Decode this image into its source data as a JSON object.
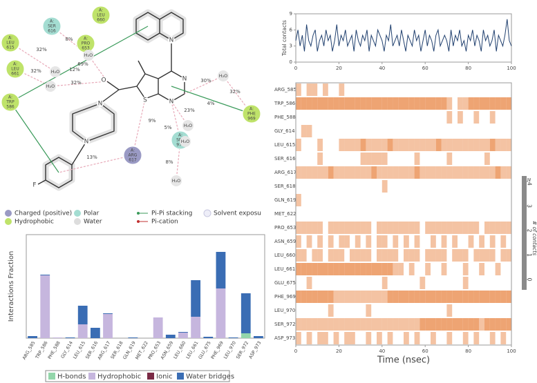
{
  "diagram": {
    "residues": [
      {
        "lines": [
          "A:",
          "SER",
          "616"
        ],
        "kind": "polar"
      },
      {
        "lines": [
          "A:",
          "LEU",
          "660"
        ],
        "kind": "hydrophobic"
      },
      {
        "lines": [
          "A:",
          "LEU",
          "615"
        ],
        "kind": "hydrophobic"
      },
      {
        "lines": [
          "A:",
          "PRO",
          "653"
        ],
        "kind": "hydrophobic"
      },
      {
        "lines": [
          "A:",
          "LEU",
          "661"
        ],
        "kind": "hydrophobic"
      },
      {
        "lines": [
          "A:",
          "TRP",
          "586"
        ],
        "kind": "hydrophobic"
      },
      {
        "lines": [
          "A:",
          "PHE",
          "969"
        ],
        "kind": "hydrophobic"
      },
      {
        "lines": [
          "A:",
          "ARG",
          "617"
        ],
        "kind": "charged"
      },
      {
        "lines": [
          "A:",
          "SER",
          "972"
        ],
        "kind": "polar"
      }
    ],
    "water": [
      "H₂O",
      "H₂O",
      "H₂O",
      "H₂O",
      "H₂O",
      "H₂O",
      "H₂O"
    ],
    "percentages": [
      "69%",
      "32%",
      "8%",
      "12%",
      "32%",
      "32%",
      "30%",
      "32%",
      "4%",
      "13%",
      "9%",
      "5%",
      "23%",
      "8%"
    ],
    "atoms": [
      "N",
      "N",
      "N",
      "O",
      "S",
      "N",
      "N",
      "F"
    ],
    "legend": [
      "Charged (positive)",
      "Hydrophobic",
      "Polar",
      "Water",
      "Pi-Pi stacking",
      "Pi-cation",
      "Solvent exposu"
    ]
  },
  "chart_data": [
    {
      "type": "bar",
      "stacked": true,
      "ylabel": "Interactions Fraction",
      "categories": [
        "ARG_585",
        "TRP_586",
        "PHE_588",
        "GLY_614",
        "LEU_615",
        "SER_616",
        "ARG_617",
        "SER_618",
        "GLN_619",
        "MET_622",
        "PRO_653",
        "ASN_659",
        "LEU_660",
        "LEU_661",
        "GLU_675",
        "PHE_969",
        "LEU_970",
        "SER_972",
        "ASP_973"
      ],
      "ylim": [
        0,
        1.5
      ],
      "series": [
        {
          "name": "H-bonds",
          "color": "#93d6aa",
          "values": [
            0,
            0,
            0,
            0,
            0,
            0,
            0,
            0,
            0,
            0,
            0,
            0,
            0,
            0,
            0,
            0,
            0,
            0.07,
            0
          ]
        },
        {
          "name": "Hydrophobic",
          "color": "#c6b6de",
          "values": [
            0,
            0.91,
            0.01,
            0,
            0.2,
            0,
            0.35,
            0,
            0,
            0,
            0.3,
            0,
            0.08,
            0.31,
            0,
            0.72,
            0,
            0,
            0
          ]
        },
        {
          "name": "Ionic",
          "color": "#7a2a45",
          "values": [
            0,
            0,
            0,
            0,
            0,
            0,
            0,
            0,
            0,
            0,
            0,
            0,
            0,
            0,
            0,
            0,
            0,
            0,
            0
          ]
        },
        {
          "name": "Water bridges",
          "color": "#3a6db4",
          "values": [
            0.03,
            0.01,
            0,
            0.01,
            0.27,
            0.15,
            0.01,
            0,
            0.01,
            0,
            0,
            0.05,
            0.01,
            0.53,
            0.02,
            0.53,
            0.01,
            0.58,
            0.03
          ]
        }
      ]
    },
    {
      "type": "line",
      "ylabel": "Total contacts",
      "color": "#1f3f6e",
      "x": [
        0,
        1,
        2,
        3,
        4,
        5,
        6,
        7,
        8,
        9,
        10,
        11,
        12,
        13,
        14,
        15,
        16,
        17,
        18,
        19,
        20,
        21,
        22,
        23,
        24,
        25,
        26,
        27,
        28,
        29,
        30,
        31,
        32,
        33,
        34,
        35,
        36,
        37,
        38,
        39,
        40,
        41,
        42,
        43,
        44,
        45,
        46,
        47,
        48,
        49,
        50,
        51,
        52,
        53,
        54,
        55,
        56,
        57,
        58,
        59,
        60,
        61,
        62,
        63,
        64,
        65,
        66,
        67,
        68,
        69,
        70,
        71,
        72,
        73,
        74,
        75,
        76,
        77,
        78,
        79,
        80,
        81,
        82,
        83,
        84,
        85,
        86,
        87,
        88,
        89,
        90,
        91,
        92,
        93,
        94,
        95,
        96,
        97,
        98,
        99,
        100
      ],
      "values": [
        4,
        6,
        3,
        5,
        2,
        7,
        4,
        3,
        5,
        6,
        2,
        4,
        5,
        3,
        6,
        4,
        5,
        2,
        4,
        7,
        3,
        5,
        4,
        6,
        3,
        4,
        5,
        2,
        6,
        4,
        3,
        5,
        4,
        6,
        2,
        5,
        4,
        3,
        6,
        5,
        4,
        2,
        5,
        4,
        7,
        3,
        4,
        5,
        3,
        6,
        4,
        2,
        5,
        4,
        3,
        6,
        4,
        5,
        2,
        4,
        6,
        3,
        5,
        4,
        2,
        5,
        6,
        3,
        4,
        5,
        4,
        2,
        6,
        3,
        5,
        4,
        6,
        3,
        4,
        2,
        5,
        4,
        6,
        3,
        5,
        4,
        2,
        6,
        4,
        5,
        3,
        4,
        6,
        2,
        5,
        4,
        3,
        5,
        8,
        4,
        3
      ],
      "xlim": [
        0,
        100
      ],
      "xticks": [
        0,
        20,
        40,
        60,
        80,
        100
      ],
      "ylim": [
        0,
        9
      ],
      "yticks": [
        0,
        3,
        6,
        9
      ]
    },
    {
      "type": "heatmap",
      "xlabel": "Time (nsec)",
      "color": "#e98a4b",
      "categories": [
        "ARG_585",
        "TRP_586",
        "PHE_588",
        "GLY_614",
        "LEU_615",
        "SER_616",
        "ARG_617",
        "SER_618",
        "GLN_619",
        "MET_622",
        "PRO_653",
        "ASN_659",
        "LEU_660",
        "LEU_661",
        "GLU_675",
        "PHE_969",
        "LEU_970",
        "SER_972",
        "ASP_973"
      ],
      "x": [
        0,
        2.5,
        5,
        7.5,
        10,
        12.5,
        15,
        17.5,
        20,
        22.5,
        25,
        27.5,
        30,
        32.5,
        35,
        37.5,
        40,
        42.5,
        45,
        47.5,
        50,
        52.5,
        55,
        57.5,
        60,
        62.5,
        65,
        67.5,
        70,
        72.5,
        75,
        77.5,
        80,
        82.5,
        85,
        87.5,
        90,
        92.5,
        95,
        97.5
      ],
      "bin_width": 2.5,
      "xlim": [
        0,
        100
      ],
      "xticks": [
        0,
        20,
        40,
        60,
        80,
        100
      ],
      "values": [
        [
          1,
          0,
          1,
          1,
          0,
          1,
          0,
          0,
          1,
          0,
          0,
          0,
          0,
          0,
          0,
          0,
          0,
          0,
          0,
          0,
          0,
          0,
          0,
          0,
          0,
          0,
          0,
          0,
          0,
          0,
          0,
          0,
          0,
          0,
          0,
          0,
          0,
          0,
          0,
          0
        ],
        [
          2,
          2,
          2,
          2,
          2,
          2,
          2,
          2,
          2,
          2,
          2,
          2,
          2,
          2,
          2,
          2,
          2,
          2,
          2,
          2,
          2,
          2,
          2,
          2,
          2,
          2,
          2,
          2,
          1,
          0,
          1,
          1,
          2,
          2,
          2,
          2,
          2,
          2,
          2,
          2
        ],
        [
          0,
          0,
          0,
          0,
          0,
          0,
          0,
          0,
          0,
          0,
          0,
          0,
          0,
          0,
          0,
          0,
          0,
          0,
          0,
          0,
          0,
          0,
          0,
          0,
          0,
          0,
          0,
          0,
          1,
          0,
          1,
          0,
          0,
          1,
          0,
          0,
          1,
          0,
          0,
          0
        ],
        [
          0,
          1,
          1,
          0,
          0,
          0,
          0,
          0,
          0,
          0,
          0,
          0,
          0,
          0,
          0,
          0,
          0,
          0,
          0,
          0,
          0,
          0,
          0,
          0,
          0,
          0,
          0,
          0,
          0,
          0,
          0,
          0,
          0,
          0,
          0,
          0,
          0,
          0,
          0,
          0
        ],
        [
          1,
          0,
          0,
          0,
          1,
          0,
          0,
          0,
          1,
          1,
          1,
          1,
          2,
          1,
          1,
          1,
          1,
          2,
          1,
          1,
          1,
          1,
          1,
          1,
          1,
          1,
          2,
          1,
          1,
          1,
          1,
          1,
          1,
          1,
          1,
          1,
          2,
          1,
          1,
          1
        ],
        [
          0,
          0,
          0,
          0,
          1,
          0,
          0,
          0,
          0,
          0,
          0,
          0,
          1,
          1,
          1,
          1,
          1,
          0,
          0,
          0,
          0,
          0,
          1,
          0,
          0,
          0,
          0,
          0,
          1,
          0,
          0,
          0,
          0,
          0,
          0,
          1,
          0,
          0,
          0,
          0
        ],
        [
          1,
          1,
          1,
          1,
          1,
          1,
          2,
          1,
          1,
          1,
          1,
          1,
          1,
          1,
          2,
          1,
          1,
          1,
          1,
          1,
          1,
          1,
          2,
          1,
          1,
          1,
          1,
          1,
          1,
          1,
          1,
          1,
          1,
          1,
          1,
          1,
          1,
          2,
          1,
          1
        ],
        [
          0,
          0,
          0,
          0,
          0,
          0,
          0,
          0,
          0,
          0,
          0,
          0,
          0,
          0,
          0,
          0,
          1,
          0,
          0,
          0,
          0,
          0,
          0,
          0,
          0,
          0,
          0,
          0,
          0,
          0,
          0,
          0,
          0,
          0,
          0,
          0,
          0,
          0,
          0,
          0
        ],
        [
          1,
          0,
          0,
          0,
          0,
          0,
          0,
          0,
          0,
          0,
          0,
          0,
          0,
          0,
          0,
          0,
          0,
          0,
          0,
          0,
          0,
          0,
          0,
          0,
          0,
          0,
          0,
          0,
          0,
          0,
          0,
          0,
          0,
          0,
          0,
          0,
          0,
          0,
          0,
          0
        ],
        [
          0,
          0,
          0,
          0,
          0,
          0,
          0,
          0,
          0,
          0,
          0,
          0,
          0,
          0,
          0,
          0,
          0,
          0,
          0,
          0,
          0,
          0,
          0,
          0,
          0,
          0,
          0,
          0,
          0,
          0,
          0,
          0,
          0,
          0,
          0,
          0,
          0,
          0,
          0,
          0
        ],
        [
          1,
          1,
          1,
          1,
          1,
          0,
          1,
          1,
          1,
          1,
          1,
          1,
          1,
          1,
          0,
          1,
          1,
          1,
          1,
          1,
          1,
          1,
          1,
          0,
          1,
          1,
          1,
          1,
          1,
          1,
          1,
          1,
          1,
          1,
          0,
          1,
          1,
          1,
          1,
          1
        ],
        [
          1,
          0,
          1,
          0,
          1,
          0,
          1,
          0,
          1,
          1,
          0,
          1,
          0,
          1,
          0,
          1,
          1,
          0,
          1,
          0,
          1,
          0,
          1,
          0,
          0,
          1,
          0,
          1,
          0,
          1,
          0,
          0,
          1,
          0,
          1,
          0,
          1,
          0,
          1,
          0
        ],
        [
          1,
          1,
          0,
          1,
          1,
          0,
          1,
          1,
          1,
          0,
          1,
          1,
          1,
          1,
          0,
          1,
          1,
          1,
          1,
          0,
          1,
          1,
          1,
          0,
          1,
          1,
          1,
          1,
          0,
          1,
          1,
          1,
          0,
          1,
          1,
          1,
          1,
          0,
          1,
          1
        ],
        [
          2,
          2,
          2,
          2,
          2,
          2,
          2,
          2,
          2,
          2,
          2,
          2,
          2,
          2,
          2,
          2,
          2,
          2,
          1,
          1,
          0,
          1,
          0,
          0,
          1,
          0,
          0,
          1,
          0,
          0,
          0,
          1,
          0,
          0,
          1,
          0,
          0,
          1,
          0,
          0
        ],
        [
          0,
          0,
          1,
          0,
          0,
          0,
          0,
          0,
          0,
          0,
          0,
          0,
          0,
          0,
          0,
          0,
          1,
          0,
          0,
          0,
          0,
          0,
          0,
          1,
          0,
          0,
          0,
          0,
          0,
          0,
          0,
          1,
          0,
          0,
          0,
          0,
          0,
          0,
          0,
          0
        ],
        [
          2,
          2,
          2,
          2,
          2,
          2,
          2,
          1,
          1,
          1,
          1,
          1,
          1,
          1,
          1,
          1,
          1,
          2,
          2,
          2,
          2,
          2,
          2,
          2,
          2,
          2,
          2,
          2,
          2,
          2,
          2,
          2,
          2,
          2,
          2,
          2,
          2,
          2,
          2,
          2
        ],
        [
          0,
          0,
          0,
          0,
          0,
          0,
          1,
          0,
          0,
          0,
          0,
          0,
          0,
          1,
          0,
          0,
          0,
          0,
          0,
          0,
          0,
          0,
          0,
          0,
          0,
          0,
          0,
          0,
          1,
          0,
          0,
          0,
          0,
          0,
          0,
          0,
          0,
          0,
          0,
          0
        ],
        [
          1,
          1,
          1,
          1,
          1,
          1,
          1,
          1,
          1,
          1,
          1,
          1,
          1,
          1,
          1,
          1,
          1,
          1,
          1,
          1,
          1,
          1,
          1,
          2,
          2,
          2,
          2,
          2,
          2,
          2,
          2,
          2,
          2,
          2,
          1,
          2,
          2,
          2,
          2,
          2
        ],
        [
          1,
          0,
          1,
          0,
          1,
          1,
          0,
          1,
          0,
          1,
          1,
          0,
          0,
          1,
          0,
          1,
          0,
          1,
          0,
          0,
          1,
          0,
          1,
          0,
          0,
          1,
          0,
          0,
          1,
          0,
          0,
          1,
          0,
          1,
          0,
          0,
          1,
          0,
          1,
          0
        ]
      ],
      "colorbar": {
        "label": "# of contacts",
        "ticks": [
          0,
          1,
          2,
          3,
          {
            "value": 4,
            "label": "≥4"
          }
        ]
      }
    }
  ]
}
